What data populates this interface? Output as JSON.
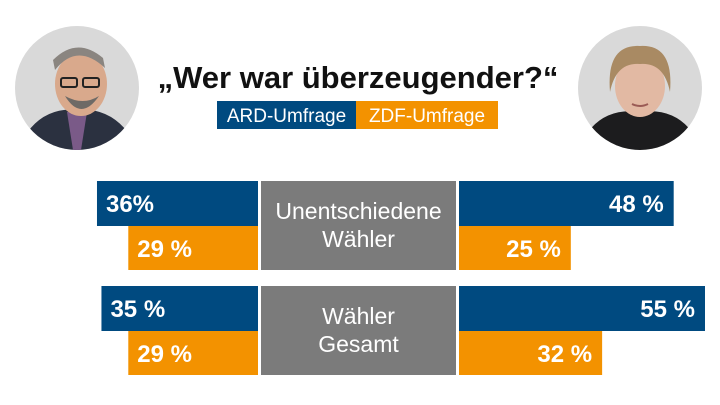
{
  "chart_data": {
    "type": "bar",
    "title": "„Wer war überzeugender?“",
    "legend": {
      "placement": "top-center",
      "entries": [
        {
          "name": "ARD-Umfrage",
          "color": "#004a80"
        },
        {
          "name": "ZDF-Umfrage",
          "color": "#f39200"
        }
      ]
    },
    "sides": {
      "left": {
        "portrait": "Martin Schulz portrait"
      },
      "right": {
        "portrait": "Angela Merkel portrait"
      }
    },
    "categories": [
      {
        "label_lines": [
          "Unentschiedene",
          "Wähler"
        ],
        "left": [
          {
            "series": "ARD-Umfrage",
            "value": 36,
            "label": "36%"
          },
          {
            "series": "ZDF-Umfrage",
            "value": 29,
            "label": "29 %"
          }
        ],
        "right": [
          {
            "series": "ARD-Umfrage",
            "value": 48,
            "label": "48 %"
          },
          {
            "series": "ZDF-Umfrage",
            "value": 25,
            "label": "25 %"
          }
        ]
      },
      {
        "label_lines": [
          "Wähler",
          "Gesamt"
        ],
        "left": [
          {
            "series": "ARD-Umfrage",
            "value": 35,
            "label": "35 %"
          },
          {
            "series": "ZDF-Umfrage",
            "value": 29,
            "label": "29 %"
          }
        ],
        "right": [
          {
            "series": "ARD-Umfrage",
            "value": 55,
            "label": "55 %"
          },
          {
            "series": "ZDF-Umfrage",
            "value": 32,
            "label": "32 %"
          }
        ]
      }
    ],
    "value_range": [
      0,
      55
    ],
    "grid": false,
    "colors": {
      "label_box": "#7b7b7b",
      "portrait_bg": "#d9d9d9"
    }
  }
}
